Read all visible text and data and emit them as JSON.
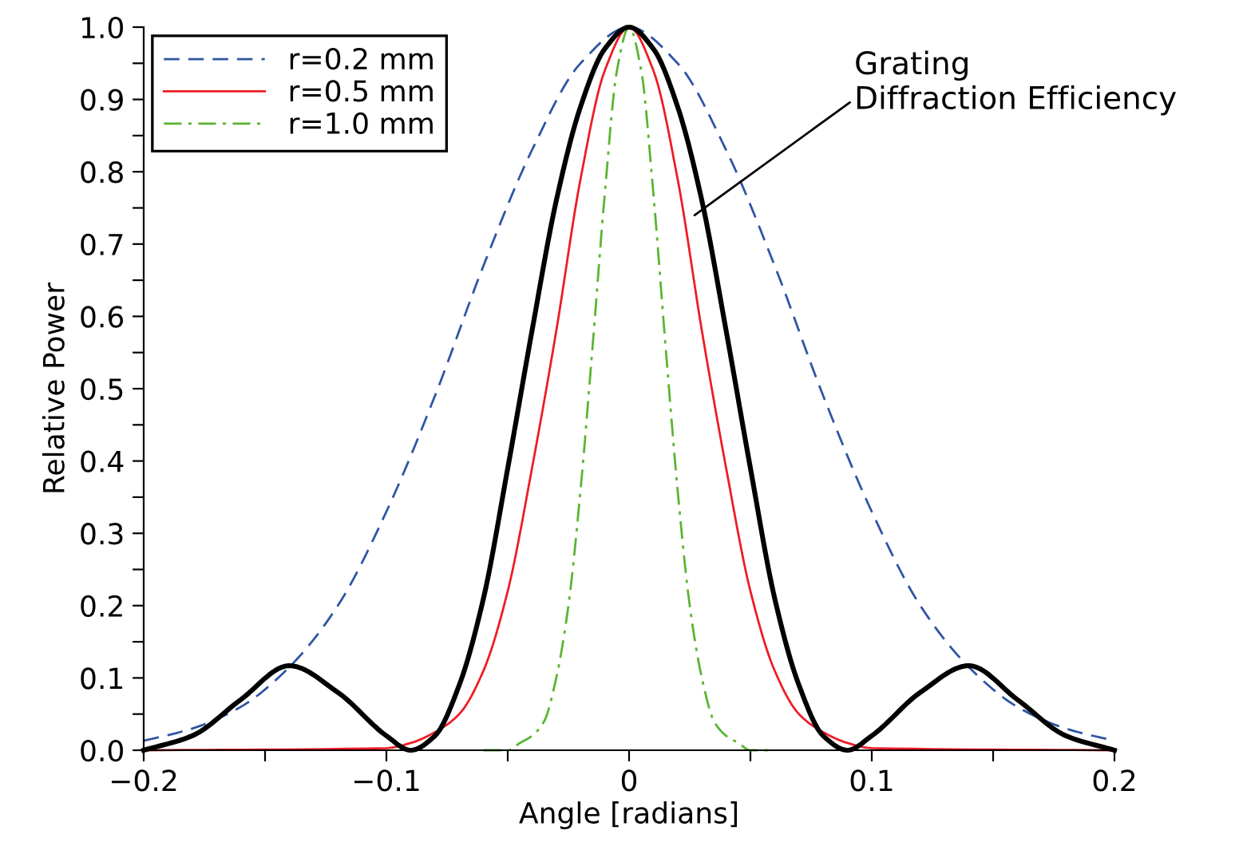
{
  "chart_data": {
    "type": "line",
    "xlabel": "Angle [radians]",
    "ylabel": "Relative Power",
    "xlim": [
      -0.2,
      0.2
    ],
    "ylim": [
      0,
      1.0
    ],
    "xticks": [
      {
        "value": -0.2,
        "label": "−0.2"
      },
      {
        "value": -0.15,
        "label": null
      },
      {
        "value": -0.1,
        "label": "−0.1"
      },
      {
        "value": -0.05,
        "label": null
      },
      0,
      {
        "value": 0.05,
        "label": null
      },
      0.1,
      {
        "value": 0.15,
        "label": null
      },
      0.2
    ],
    "yticks": [
      {
        "value": 0,
        "label": "0.0"
      },
      {
        "value": 0.05,
        "label": null
      },
      0.1,
      {
        "value": 0.15,
        "label": null
      },
      0.2,
      {
        "value": 0.25,
        "label": null
      },
      0.3,
      {
        "value": 0.35,
        "label": null
      },
      0.4,
      {
        "value": 0.45,
        "label": null
      },
      0.5,
      {
        "value": 0.55,
        "label": null
      },
      0.6,
      {
        "value": 0.65,
        "label": null
      },
      0.7,
      {
        "value": 0.75,
        "label": null
      },
      0.8,
      {
        "value": 0.85,
        "label": null
      },
      0.9,
      {
        "value": 0.95,
        "label": null
      },
      {
        "value": 1.0,
        "label": "1.0"
      }
    ],
    "grid": false,
    "legend": "top left",
    "series": [
      {
        "name": "r=0.2 mm",
        "color": "#2f55a4",
        "line_style": "dashed",
        "x": [
          -0.2,
          -0.18,
          -0.16,
          -0.14,
          -0.12,
          -0.1,
          -0.08,
          -0.06,
          -0.04,
          -0.02,
          0,
          0.02,
          0.04,
          0.06,
          0.08,
          0.1,
          0.12,
          0.14,
          0.16,
          0.18,
          0.2
        ],
        "values": [
          0.013,
          0.03,
          0.06,
          0.115,
          0.2,
          0.33,
          0.49,
          0.67,
          0.83,
          0.95,
          1.0,
          0.95,
          0.83,
          0.67,
          0.49,
          0.33,
          0.2,
          0.115,
          0.06,
          0.03,
          0.013
        ]
      },
      {
        "name": "r=0.5 mm",
        "color": "#ee1c25",
        "line_style": "solid",
        "x": [
          -0.2,
          -0.1,
          -0.09,
          -0.08,
          -0.07,
          -0.06,
          -0.05,
          -0.04,
          -0.03,
          -0.02,
          -0.01,
          0,
          0.01,
          0.02,
          0.03,
          0.04,
          0.05,
          0.06,
          0.07,
          0.08,
          0.09,
          0.1,
          0.2
        ],
        "values": [
          0,
          0.003,
          0.01,
          0.025,
          0.05,
          0.11,
          0.22,
          0.39,
          0.58,
          0.79,
          0.94,
          1.0,
          0.94,
          0.79,
          0.58,
          0.39,
          0.22,
          0.11,
          0.05,
          0.025,
          0.01,
          0.003,
          0
        ]
      },
      {
        "name": "r=1.0 mm",
        "color": "#5bb432",
        "line_style": "dashdot",
        "x": [
          -0.06,
          -0.05,
          -0.045,
          -0.04,
          -0.035,
          -0.03,
          -0.025,
          -0.02,
          -0.015,
          -0.01,
          -0.005,
          0,
          0.005,
          0.01,
          0.015,
          0.02,
          0.025,
          0.03,
          0.035,
          0.04,
          0.045,
          0.05,
          0.06
        ],
        "values": [
          0,
          0.0,
          0.01,
          0.02,
          0.04,
          0.1,
          0.2,
          0.36,
          0.56,
          0.77,
          0.94,
          1.0,
          0.94,
          0.77,
          0.56,
          0.36,
          0.2,
          0.1,
          0.04,
          0.02,
          0.01,
          0.0,
          0
        ]
      },
      {
        "color": "#000000",
        "line_style": "solid",
        "x": [
          -0.2,
          -0.18,
          -0.16,
          -0.14,
          -0.12,
          -0.1,
          -0.09,
          -0.08,
          -0.07,
          -0.06,
          -0.05,
          -0.04,
          -0.03,
          -0.02,
          -0.01,
          0,
          0.01,
          0.02,
          0.03,
          0.04,
          0.05,
          0.06,
          0.07,
          0.08,
          0.09,
          0.1,
          0.12,
          0.14,
          0.16,
          0.18,
          0.2
        ],
        "values": [
          0,
          0.02,
          0.07,
          0.117,
          0.08,
          0.02,
          0,
          0.02,
          0.09,
          0.21,
          0.39,
          0.58,
          0.76,
          0.89,
          0.97,
          1.0,
          0.97,
          0.89,
          0.76,
          0.58,
          0.39,
          0.21,
          0.09,
          0.02,
          0,
          0.02,
          0.08,
          0.117,
          0.07,
          0.02,
          0
        ]
      }
    ],
    "annotations": [
      {
        "text": "Grating\nDiffraction Efficiency",
        "x": 0.027,
        "y": 0.74
      }
    ]
  }
}
